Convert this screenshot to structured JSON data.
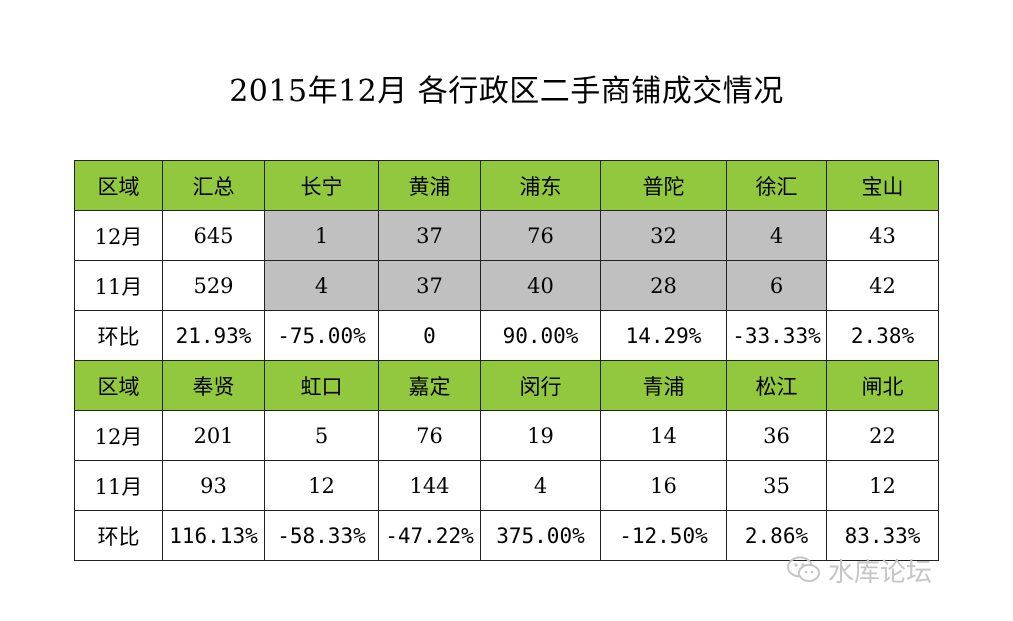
{
  "title": "2015年12月  各行政区二手商铺成交情况",
  "watermark": "水库论坛",
  "colors": {
    "header": "#92c83e",
    "highlight": "#c0c0c0",
    "increase": "#ff0000",
    "decrease": "#00a651"
  },
  "chart_data": {
    "type": "table",
    "title": "2015年12月  各行政区二手商铺成交情况",
    "sections": [
      {
        "header": [
          "区域",
          "汇总",
          "长宁",
          "黄浦",
          "浦东",
          "普陀",
          "徐汇",
          "宝山"
        ],
        "rows": [
          [
            "12月",
            "645",
            "1",
            "37",
            "76",
            "32",
            "4",
            "43"
          ],
          [
            "11月",
            "529",
            "4",
            "37",
            "40",
            "28",
            "6",
            "42"
          ],
          [
            "环比",
            "21.93%",
            "-75.00%",
            "0",
            "90.00%",
            "14.29%",
            "-33.33%",
            "2.38%"
          ]
        ]
      },
      {
        "header": [
          "区域",
          "奉贤",
          "虹口",
          "嘉定",
          "闵行",
          "青浦",
          "松江",
          "闸北"
        ],
        "rows": [
          [
            "12月",
            "201",
            "5",
            "76",
            "19",
            "14",
            "36",
            "22"
          ],
          [
            "11月",
            "93",
            "12",
            "144",
            "4",
            "16",
            "35",
            "12"
          ],
          [
            "环比",
            "116.13%",
            "-58.33%",
            "-47.22%",
            "375.00%",
            "-12.50%",
            "2.86%",
            "83.33%"
          ]
        ]
      }
    ]
  }
}
